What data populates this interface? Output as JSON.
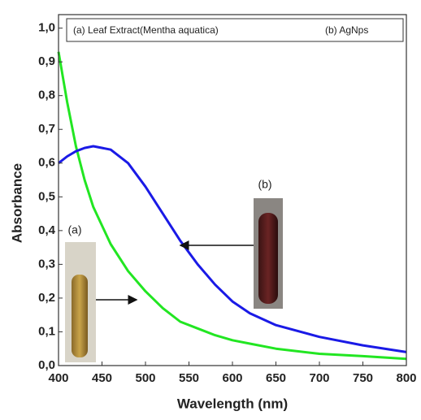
{
  "chart_data": {
    "type": "line",
    "x_label": "Wavelength (nm)",
    "y_label": "Absorbance",
    "x": [
      400,
      410,
      420,
      430,
      440,
      460,
      480,
      500,
      520,
      540,
      560,
      580,
      600,
      620,
      650,
      700,
      750,
      800
    ],
    "series": [
      {
        "name": "(a) Leaf Extract(Mentha aquatica)",
        "color": "#22e622",
        "values": [
          0.93,
          0.78,
          0.65,
          0.55,
          0.47,
          0.36,
          0.28,
          0.22,
          0.17,
          0.13,
          0.11,
          0.09,
          0.075,
          0.065,
          0.05,
          0.035,
          0.028,
          0.02
        ]
      },
      {
        "name": "(b) AgNps",
        "color": "#1a1ae6",
        "values": [
          0.6,
          0.62,
          0.635,
          0.645,
          0.65,
          0.64,
          0.6,
          0.53,
          0.45,
          0.37,
          0.3,
          0.24,
          0.19,
          0.155,
          0.12,
          0.085,
          0.06,
          0.04
        ]
      }
    ],
    "xlim": [
      400,
      800
    ],
    "xticks": [
      400,
      450,
      500,
      550,
      600,
      650,
      700,
      750,
      800
    ],
    "ylim": [
      0,
      1.04
    ],
    "yticks": [
      {
        "value": 0,
        "label": "0,0"
      },
      {
        "value": 0.1,
        "label": "0,1"
      },
      {
        "value": 0.2,
        "label": "0,2"
      },
      {
        "value": 0.3,
        "label": "0,3"
      },
      {
        "value": 0.4,
        "label": "0,4"
      },
      {
        "value": 0.5,
        "label": "0,5"
      },
      {
        "value": 0.6,
        "label": "0,6"
      },
      {
        "value": 0.7,
        "label": "0,7"
      },
      {
        "value": 0.8,
        "label": "0,8"
      },
      {
        "value": 0.9,
        "label": "0,9"
      },
      {
        "value": 1.0,
        "label": "1,0"
      }
    ],
    "annotations": [
      "(a)",
      "(b)"
    ],
    "grid": false
  }
}
